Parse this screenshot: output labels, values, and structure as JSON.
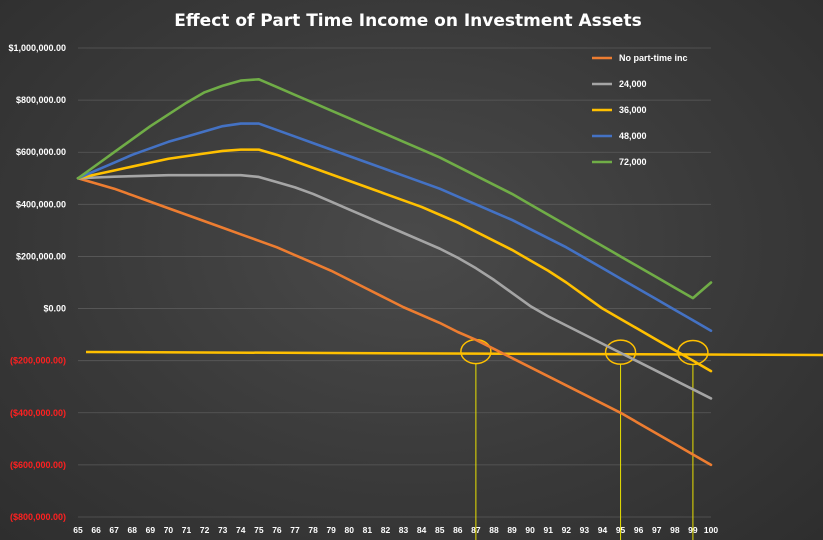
{
  "chart_data": {
    "type": "line",
    "title": "Effect of Part Time Income on Investment Assets",
    "xlabel": "",
    "ylabel": "",
    "x": [
      65,
      66,
      67,
      68,
      69,
      70,
      71,
      72,
      73,
      74,
      75,
      76,
      77,
      78,
      79,
      80,
      81,
      82,
      83,
      84,
      85,
      86,
      87,
      88,
      89,
      90,
      91,
      92,
      93,
      94,
      95,
      96,
      97,
      98,
      99,
      100
    ],
    "y_ticks": [
      "$1,000,000.00",
      "$800,000.00",
      "$600,000.00",
      "$400,000.00",
      "$200,000.00",
      "$0.00",
      "($200,000.00)",
      "($400,000.00)",
      "($600,000.00)",
      "($800,000.00)"
    ],
    "ylim": [
      -800000,
      1000000
    ],
    "grid": true,
    "legend_position": "top-right",
    "series": [
      {
        "name": "No part-time inc",
        "color": "#ed7d31",
        "values": [
          500000,
          480000,
          460000,
          435000,
          410000,
          385000,
          360000,
          335000,
          310000,
          285000,
          260000,
          235000,
          205000,
          175000,
          145000,
          110000,
          75000,
          40000,
          5000,
          -25000,
          -55000,
          -90000,
          -120000,
          -155000,
          -190000,
          -225000,
          -260000,
          -295000,
          -330000,
          -365000,
          -400000,
          -440000,
          -480000,
          -520000,
          -560000,
          -600000
        ]
      },
      {
        "name": "24,000",
        "color": "#a5a5a5",
        "values": [
          500000,
          503000,
          506000,
          508000,
          510000,
          512000,
          512000,
          512000,
          512000,
          512000,
          505000,
          485000,
          465000,
          440000,
          410000,
          380000,
          350000,
          320000,
          290000,
          260000,
          230000,
          195000,
          155000,
          110000,
          60000,
          10000,
          -30000,
          -65000,
          -100000,
          -135000,
          -170000,
          -205000,
          -240000,
          -275000,
          -310000,
          -345000
        ]
      },
      {
        "name": "36,000",
        "color": "#ffc000",
        "values": [
          500000,
          515000,
          530000,
          545000,
          560000,
          575000,
          585000,
          595000,
          605000,
          610000,
          610000,
          590000,
          565000,
          540000,
          515000,
          490000,
          465000,
          440000,
          415000,
          390000,
          360000,
          330000,
          295000,
          260000,
          225000,
          185000,
          145000,
          100000,
          50000,
          0,
          -40000,
          -80000,
          -120000,
          -160000,
          -200000,
          -240000
        ]
      },
      {
        "name": "48,000",
        "color": "#4472c4",
        "values": [
          500000,
          530000,
          560000,
          590000,
          615000,
          640000,
          660000,
          680000,
          700000,
          710000,
          710000,
          685000,
          660000,
          635000,
          610000,
          585000,
          560000,
          535000,
          510000,
          485000,
          460000,
          430000,
          400000,
          370000,
          340000,
          305000,
          270000,
          235000,
          195000,
          155000,
          115000,
          75000,
          35000,
          -5000,
          -45000,
          -85000
        ]
      },
      {
        "name": "72,000",
        "color": "#70ad47",
        "values": [
          500000,
          550000,
          600000,
          650000,
          700000,
          745000,
          790000,
          830000,
          855000,
          875000,
          880000,
          850000,
          820000,
          790000,
          760000,
          730000,
          700000,
          670000,
          640000,
          610000,
          580000,
          545000,
          510000,
          475000,
          440000,
          400000,
          360000,
          320000,
          280000,
          240000,
          200000,
          160000,
          120000,
          80000,
          40000,
          100000
        ]
      }
    ],
    "annotations": {
      "threshold_line_color": "#ffc000",
      "circled_ages": [
        87,
        95,
        99
      ]
    }
  }
}
